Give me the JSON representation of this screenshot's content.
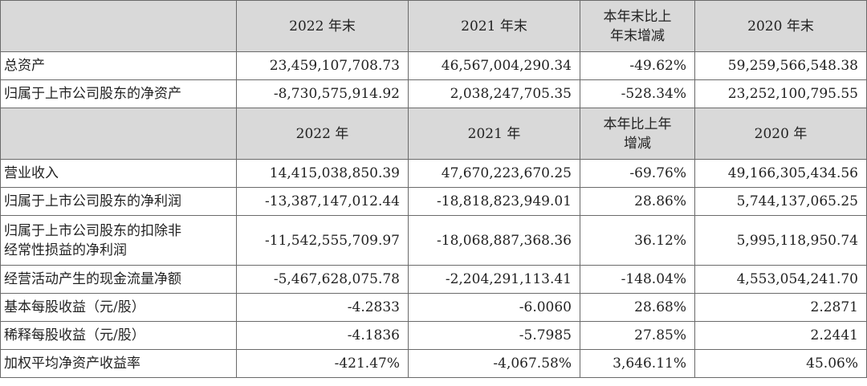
{
  "header_balance": [
    "2022 年末",
    "2021 年末",
    "本年末比上年末增减",
    "2020 年末"
  ],
  "header_balance_change_lines": [
    "本年末比上",
    "年末增减"
  ],
  "balance_rows": [
    {
      "label": "总资产",
      "v2022": "23,459,107,708.73",
      "v2021": "46,567,004,290.34",
      "change": "-49.62%",
      "v2020": "59,259,566,548.38"
    },
    {
      "label": "归属于上市公司股东的净资产",
      "v2022": "-8,730,575,914.92",
      "v2021": "2,038,247,705.35",
      "change": "-528.34%",
      "v2020": "23,252,100,795.55"
    }
  ],
  "header_income": [
    "2022 年",
    "2021 年",
    "本年比上年增减",
    "2020 年"
  ],
  "header_income_change_lines": [
    "本年比上年",
    "增减"
  ],
  "income_rows": [
    {
      "label": "营业收入",
      "v2022": "14,415,038,850.39",
      "v2021": "47,670,223,670.25",
      "change": "-69.76%",
      "v2020": "49,166,305,434.56"
    },
    {
      "label": "归属于上市公司股东的净利润",
      "v2022": "-13,387,147,012.44",
      "v2021": "-18,818,823,949.01",
      "change": "28.86%",
      "v2020": "5,744,137,065.25"
    },
    {
      "label_lines": [
        "归属于上市公司股东的扣除非",
        "经常性损益的净利润"
      ],
      "v2022": "-11,542,555,709.97",
      "v2021": "-18,068,887,368.36",
      "change": "36.12%",
      "v2020": "5,995,118,950.74"
    },
    {
      "label": "经营活动产生的现金流量净额",
      "v2022": "-5,467,628,075.78",
      "v2021": "-2,204,291,113.41",
      "change": "-148.04%",
      "v2020": "4,553,054,241.70"
    },
    {
      "label": "基本每股收益（元/股）",
      "v2022": "-4.2833",
      "v2021": "-6.0060",
      "change": "28.68%",
      "v2020": "2.2871"
    },
    {
      "label": "稀释每股收益（元/股）",
      "v2022": "-4.1836",
      "v2021": "-5.7985",
      "change": "27.85%",
      "v2020": "2.2441"
    },
    {
      "label": "加权平均净资产收益率",
      "v2022": "-421.47%",
      "v2021": "-4,067.58%",
      "change": "3,646.11%",
      "v2020": "45.06%"
    }
  ]
}
